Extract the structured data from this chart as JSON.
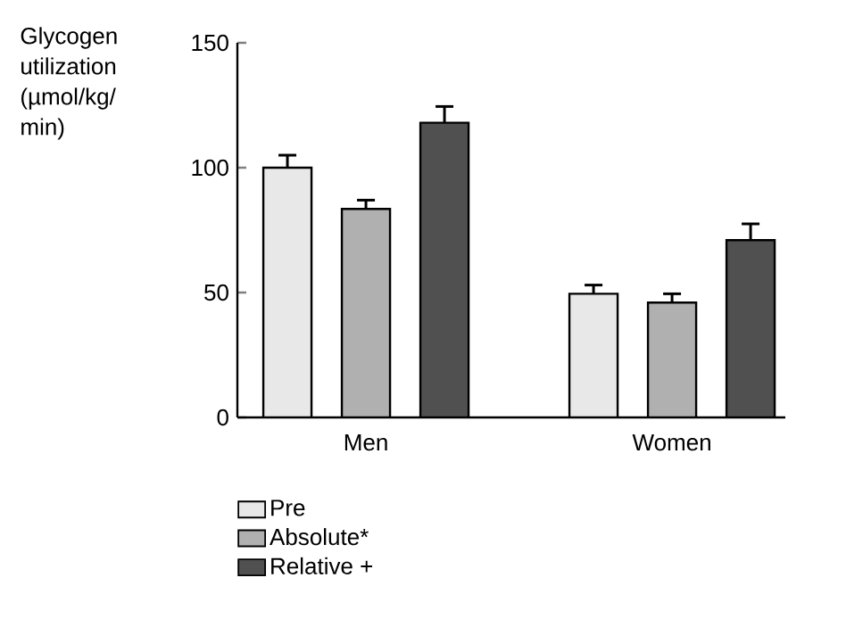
{
  "chart_data": {
    "type": "bar",
    "ylabel": "Glycogen utilization (µmol/kg/min)",
    "categories": [
      "Men",
      "Women"
    ],
    "series": [
      {
        "name": "Pre",
        "color": "#e8e8e8",
        "values": [
          100,
          49.5
        ],
        "errors": [
          5,
          3.5
        ]
      },
      {
        "name": "Absolute*",
        "color": "#b0b0b0",
        "values": [
          83.5,
          46
        ],
        "errors": [
          3.5,
          3.5
        ]
      },
      {
        "name": "Relative +",
        "color": "#505050",
        "values": [
          118,
          71
        ],
        "errors": [
          6.5,
          6.5
        ]
      }
    ],
    "ylim": [
      0,
      150
    ],
    "yticks": [
      0,
      50,
      100,
      150
    ],
    "legend": "bottom left",
    "grid": false
  }
}
